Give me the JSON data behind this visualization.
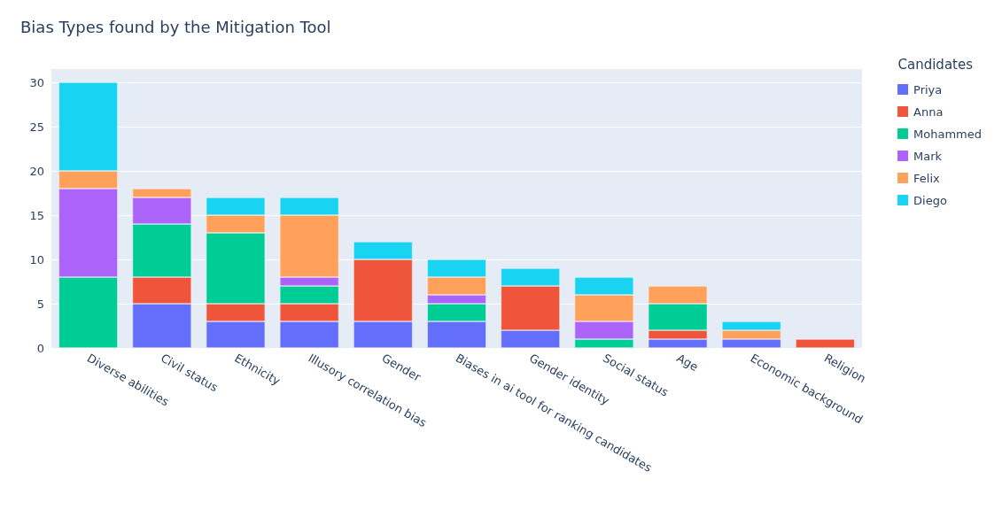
{
  "chart_data": {
    "type": "bar",
    "title": "Bias Types found by the Mitigation Tool",
    "legend_title": "Candidates",
    "stacked": true,
    "grid": "y",
    "legend": "top right",
    "categories": [
      "Diverse abilities",
      "Civil status",
      "Ethnicity",
      "Illusory correlation bias",
      "Gender",
      "Biases in ai tool for ranking candidates",
      "Gender identity",
      "Social status",
      "Age",
      "Economic background",
      "Religion"
    ],
    "ylim": [
      0,
      31.5
    ],
    "yticks": [
      0,
      5,
      10,
      15,
      20,
      25,
      30
    ],
    "series": [
      {
        "name": "Priya",
        "color": "#636efa",
        "values": [
          0,
          5,
          3,
          3,
          3,
          3,
          2,
          0,
          1,
          1,
          0
        ]
      },
      {
        "name": "Anna",
        "color": "#ef553b",
        "values": [
          0,
          3,
          2,
          2,
          7,
          0,
          5,
          0,
          1,
          0,
          1
        ]
      },
      {
        "name": "Mohammed",
        "color": "#00cc96",
        "values": [
          8,
          6,
          8,
          2,
          0,
          2,
          0,
          1,
          3,
          0,
          0
        ]
      },
      {
        "name": "Mark",
        "color": "#ab63fa",
        "values": [
          10,
          3,
          0,
          1,
          0,
          1,
          0,
          2,
          0,
          0,
          0
        ]
      },
      {
        "name": "Felix",
        "color": "#ffa15a",
        "values": [
          2,
          1,
          2,
          7,
          0,
          2,
          0,
          3,
          2,
          1,
          0
        ]
      },
      {
        "name": "Diego",
        "color": "#19d3f3",
        "values": [
          10,
          0,
          2,
          2,
          2,
          2,
          2,
          2,
          0,
          1,
          0
        ]
      }
    ]
  }
}
